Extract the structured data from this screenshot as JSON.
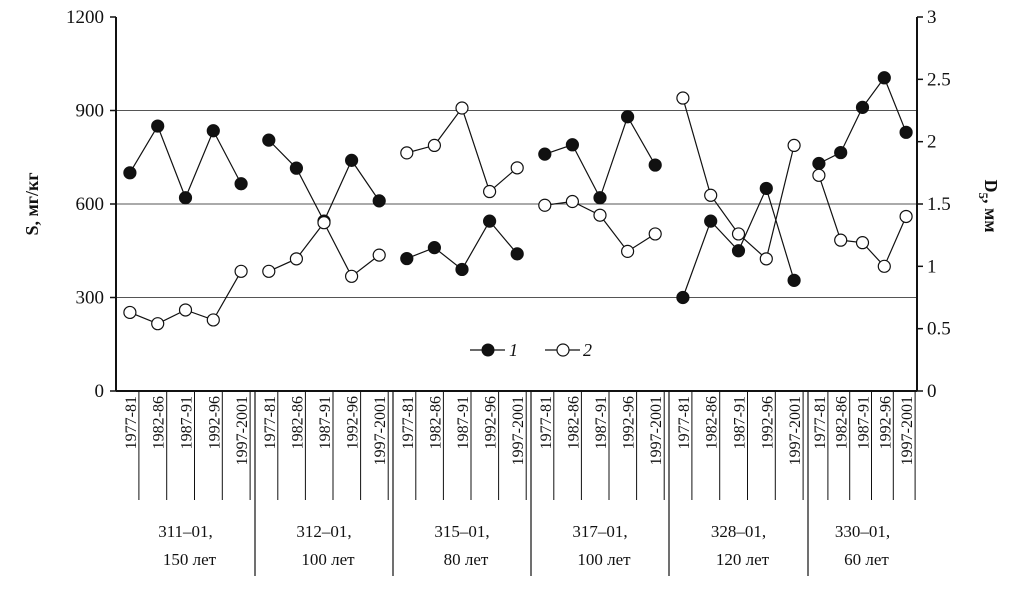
{
  "chart_data": {
    "type": "line",
    "periods": [
      "1977-81",
      "1982-86",
      "1987-91",
      "1992-96",
      "1997-2001"
    ],
    "groups": [
      {
        "label": "311–01,",
        "age": "150 лет"
      },
      {
        "label": "312–01,",
        "age": "100 лет"
      },
      {
        "label": "315–01,",
        "age": "80 лет"
      },
      {
        "label": "317–01,",
        "age": "100 лет"
      },
      {
        "label": "328–01,",
        "age": "120 лет"
      },
      {
        "label": "330–01,",
        "age": "60 лет"
      }
    ],
    "series": [
      {
        "name": "1",
        "axis": "left",
        "marker": "filled",
        "color": "#111111",
        "values": [
          [
            700,
            850,
            620,
            835,
            665
          ],
          [
            805,
            715,
            545,
            740,
            610
          ],
          [
            425,
            460,
            390,
            545,
            440
          ],
          [
            760,
            790,
            620,
            880,
            725
          ],
          [
            300,
            545,
            450,
            650,
            355
          ],
          [
            730,
            765,
            910,
            1005,
            830
          ]
        ]
      },
      {
        "name": "2",
        "axis": "right",
        "marker": "hollow",
        "color": "#111111",
        "values": [
          [
            0.63,
            0.54,
            0.65,
            0.57,
            0.96
          ],
          [
            0.96,
            1.06,
            1.35,
            0.92,
            1.09
          ],
          [
            1.91,
            1.97,
            2.27,
            1.6,
            1.79
          ],
          [
            1.49,
            1.52,
            1.41,
            1.12,
            1.26
          ],
          [
            2.35,
            1.57,
            1.26,
            1.06,
            1.97
          ],
          [
            1.73,
            1.21,
            1.19,
            1.0,
            1.4
          ]
        ]
      }
    ],
    "ylabel": "S, мг/кг",
    "ylim": [
      0,
      1200
    ],
    "yticks": [
      "0",
      "300",
      "600",
      "900",
      "1200"
    ],
    "y2label": "D5, мм",
    "y2label_main": "D",
    "y2label_sub": "5",
    "y2label_unit": ", мм",
    "y2lim": [
      0,
      3
    ],
    "y2ticks": [
      "0",
      "0.5",
      "1",
      "1.5",
      "2",
      "2.5",
      "3"
    ],
    "grid": "horizontal at 300, 600, 900",
    "legend": "center"
  }
}
